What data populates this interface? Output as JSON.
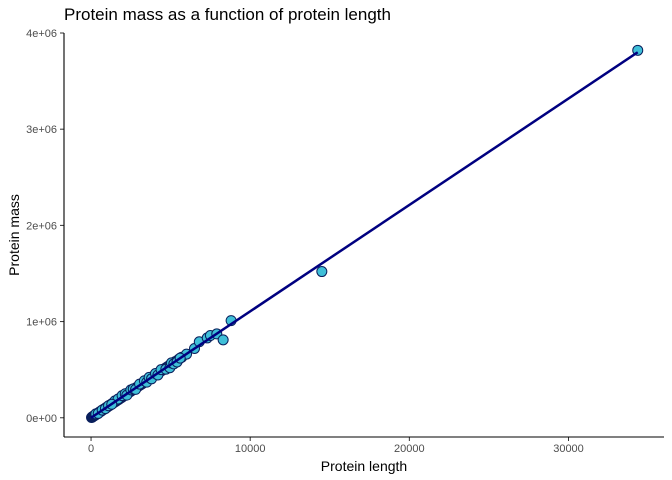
{
  "chart_data": {
    "type": "scatter",
    "title": "Protein mass as a function of protein length",
    "xlabel": "Protein length",
    "ylabel": "Protein mass",
    "xlim": [
      -1700,
      36000
    ],
    "ylim": [
      -200000,
      4000000
    ],
    "x_ticks": [
      0,
      10000,
      20000,
      30000
    ],
    "x_tick_labels": [
      "0",
      "10000",
      "20000",
      "30000"
    ],
    "y_ticks": [
      0,
      1000000,
      2000000,
      3000000,
      4000000
    ],
    "y_tick_labels": [
      "0e+00",
      "1e+06",
      "2e+06",
      "3e+06",
      "4e+06"
    ],
    "grid": false,
    "point_fill": "#3fbfd8",
    "point_stroke": "#0a1f5c",
    "line_color": "#000080",
    "trend_line": {
      "x": [
        0,
        34350
      ],
      "y": [
        0,
        3800000
      ]
    },
    "points": [
      [
        30,
        3000
      ],
      [
        60,
        6000
      ],
      [
        90,
        10000
      ],
      [
        120,
        13000
      ],
      [
        150,
        16000
      ],
      [
        180,
        20000
      ],
      [
        200,
        22000
      ],
      [
        230,
        25000
      ],
      [
        260,
        29000
      ],
      [
        290,
        32000
      ],
      [
        320,
        35000
      ],
      [
        350,
        39000
      ],
      [
        380,
        42000
      ],
      [
        420,
        46000
      ],
      [
        460,
        51000
      ],
      [
        500,
        55000
      ],
      [
        540,
        60000
      ],
      [
        580,
        64000
      ],
      [
        620,
        68000
      ],
      [
        660,
        73000
      ],
      [
        700,
        77000
      ],
      [
        750,
        83000
      ],
      [
        800,
        88000
      ],
      [
        850,
        94000
      ],
      [
        900,
        99000
      ],
      [
        950,
        105000
      ],
      [
        1000,
        110000
      ],
      [
        1050,
        116000
      ],
      [
        1100,
        121000
      ],
      [
        1150,
        127000
      ],
      [
        1200,
        132000
      ],
      [
        1250,
        138000
      ],
      [
        1300,
        143000
      ],
      [
        1350,
        150000
      ],
      [
        1400,
        155000
      ],
      [
        1450,
        160000
      ],
      [
        1500,
        166000
      ],
      [
        1550,
        170000
      ],
      [
        1600,
        177000
      ],
      [
        1650,
        182000
      ],
      [
        1700,
        188000
      ],
      [
        1750,
        193000
      ],
      [
        1800,
        199000
      ],
      [
        1850,
        204000
      ],
      [
        1900,
        210000
      ],
      [
        1950,
        215000
      ],
      [
        2000,
        221000
      ],
      [
        2100,
        232000
      ],
      [
        2200,
        243000
      ],
      [
        2300,
        254000
      ],
      [
        2400,
        265000
      ],
      [
        2500,
        276000
      ],
      [
        2600,
        287000
      ],
      [
        2700,
        298000
      ],
      [
        2800,
        309000
      ],
      [
        2900,
        320000
      ],
      [
        3000,
        331000
      ],
      [
        3100,
        342000
      ],
      [
        3200,
        353000
      ],
      [
        3300,
        364000
      ],
      [
        3400,
        375000
      ],
      [
        3500,
        386000
      ],
      [
        3600,
        397000
      ],
      [
        3700,
        408000
      ],
      [
        3800,
        419000
      ],
      [
        3900,
        430000
      ],
      [
        4000,
        441000
      ],
      [
        4100,
        452000
      ],
      [
        4200,
        464000
      ],
      [
        4300,
        475000
      ],
      [
        4400,
        486000
      ],
      [
        4500,
        497000
      ],
      [
        4600,
        508000
      ],
      [
        4700,
        519000
      ],
      [
        4800,
        530000
      ],
      [
        4900,
        541000
      ],
      [
        5000,
        552000
      ],
      [
        5100,
        563000
      ],
      [
        5200,
        574000
      ],
      [
        5300,
        585000
      ],
      [
        5500,
        607000
      ],
      [
        5700,
        629000
      ],
      [
        6000,
        662000
      ],
      [
        6500,
        720000
      ],
      [
        6800,
        790000
      ],
      [
        7300,
        830000
      ],
      [
        7500,
        855000
      ],
      [
        7900,
        872000
      ],
      [
        8300,
        810000
      ],
      [
        8800,
        1010000
      ],
      [
        14500,
        1520000
      ],
      [
        34350,
        3820000
      ],
      [
        1500,
        176000
      ],
      [
        1700,
        195000
      ],
      [
        1950,
        230000
      ],
      [
        2150,
        250000
      ],
      [
        2250,
        235000
      ],
      [
        2500,
        290000
      ],
      [
        2650,
        300000
      ],
      [
        2800,
        295000
      ],
      [
        3050,
        350000
      ],
      [
        3350,
        385000
      ],
      [
        3500,
        370000
      ],
      [
        3650,
        420000
      ],
      [
        3800,
        405000
      ],
      [
        4050,
        460000
      ],
      [
        4200,
        445000
      ],
      [
        4400,
        500000
      ],
      [
        4700,
        505000
      ],
      [
        4950,
        520000
      ],
      [
        5050,
        570000
      ],
      [
        5200,
        560000
      ],
      [
        5400,
        580000
      ],
      [
        5600,
        620000
      ],
      [
        300,
        40000
      ],
      [
        450,
        45000
      ],
      [
        700,
        80000
      ],
      [
        900,
        95000
      ],
      [
        1100,
        125000
      ],
      [
        1300,
        140000
      ]
    ]
  }
}
